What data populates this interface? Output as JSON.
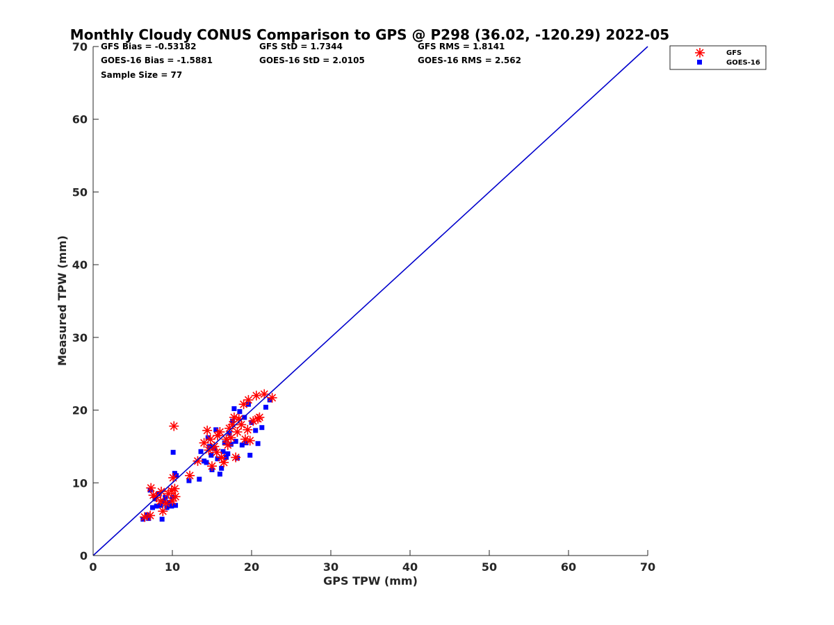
{
  "chart_data": {
    "type": "scatter",
    "title": "Monthly Cloudy CONUS Comparison to GPS @ P298 (36.02, -120.29) 2022-05",
    "xlabel": "GPS TPW (mm)",
    "ylabel": "Measured TPW (mm)",
    "xlim": [
      0,
      70
    ],
    "ylim": [
      0,
      70
    ],
    "xticks": [
      "0",
      "10",
      "20",
      "30",
      "40",
      "50",
      "60",
      "70"
    ],
    "yticks": [
      "0",
      "10",
      "20",
      "30",
      "40",
      "50",
      "60",
      "70"
    ],
    "grid": false,
    "legend_position": "top-right-outside",
    "stats": {
      "gfs_bias": "GFS Bias = -0.53182",
      "gfs_std": "GFS StD = 1.7344",
      "gfs_rms": "GFS RMS = 1.8141",
      "goes_bias": "GOES-16 Bias = -1.5881",
      "goes_std": "GOES-16 StD = 2.0105",
      "goes_rms": "GOES-16 RMS = 2.562",
      "sample_size": "Sample Size = 77"
    },
    "reference_line": {
      "x": [
        0,
        70
      ],
      "y": [
        0,
        70
      ],
      "color": "#0000cc"
    },
    "series": [
      {
        "name": "GFS",
        "marker": "asterisk",
        "color": "#ff0000",
        "points": [
          [
            6.5,
            5.3
          ],
          [
            7.2,
            5.5
          ],
          [
            7.3,
            9.3
          ],
          [
            7.6,
            8.3
          ],
          [
            8.0,
            8.0
          ],
          [
            8.5,
            7.5
          ],
          [
            8.6,
            8.8
          ],
          [
            8.8,
            6.1
          ],
          [
            9.2,
            7.2
          ],
          [
            9.5,
            8.5
          ],
          [
            9.9,
            8.9
          ],
          [
            10.0,
            7.5
          ],
          [
            10.1,
            10.7
          ],
          [
            10.2,
            17.8
          ],
          [
            10.3,
            9.2
          ],
          [
            10.4,
            8.1
          ],
          [
            12.2,
            11.0
          ],
          [
            13.2,
            13.0
          ],
          [
            14.0,
            15.5
          ],
          [
            14.4,
            17.2
          ],
          [
            14.6,
            14.5
          ],
          [
            14.8,
            16.0
          ],
          [
            15.0,
            12.3
          ],
          [
            15.3,
            15.0
          ],
          [
            15.6,
            14.2
          ],
          [
            15.7,
            16.5
          ],
          [
            16.0,
            17.0
          ],
          [
            16.2,
            13.5
          ],
          [
            16.5,
            12.8
          ],
          [
            16.8,
            16.0
          ],
          [
            17.0,
            15.2
          ],
          [
            17.2,
            17.5
          ],
          [
            17.4,
            16.2
          ],
          [
            17.6,
            18.0
          ],
          [
            17.8,
            19.0
          ],
          [
            18.0,
            13.5
          ],
          [
            18.2,
            17.0
          ],
          [
            18.4,
            18.8
          ],
          [
            18.7,
            18.0
          ],
          [
            19.0,
            20.8
          ],
          [
            19.2,
            16.0
          ],
          [
            19.5,
            17.3
          ],
          [
            19.6,
            21.4
          ],
          [
            19.8,
            15.8
          ],
          [
            20.2,
            18.5
          ],
          [
            20.6,
            22.0
          ],
          [
            20.8,
            18.8
          ],
          [
            21.0,
            19.0
          ],
          [
            21.6,
            22.2
          ],
          [
            22.6,
            21.7
          ]
        ]
      },
      {
        "name": "GOES-16",
        "marker": "square",
        "color": "#0000ff",
        "points": [
          [
            6.3,
            5.0
          ],
          [
            6.8,
            5.6
          ],
          [
            7.0,
            5.1
          ],
          [
            7.2,
            9.0
          ],
          [
            7.5,
            6.6
          ],
          [
            7.8,
            7.8
          ],
          [
            8.0,
            6.8
          ],
          [
            8.2,
            8.5
          ],
          [
            8.5,
            6.9
          ],
          [
            8.7,
            5.0
          ],
          [
            8.9,
            7.5
          ],
          [
            9.1,
            8.0
          ],
          [
            9.3,
            6.6
          ],
          [
            9.6,
            7.3
          ],
          [
            9.9,
            6.8
          ],
          [
            10.0,
            8.0
          ],
          [
            10.1,
            14.2
          ],
          [
            10.3,
            11.3
          ],
          [
            10.4,
            6.9
          ],
          [
            10.5,
            11.0
          ],
          [
            12.1,
            10.3
          ],
          [
            13.4,
            10.5
          ],
          [
            13.6,
            14.3
          ],
          [
            14.0,
            13.0
          ],
          [
            14.3,
            12.8
          ],
          [
            14.5,
            16.2
          ],
          [
            14.7,
            15.0
          ],
          [
            14.9,
            13.8
          ],
          [
            15.0,
            11.8
          ],
          [
            15.3,
            14.7
          ],
          [
            15.5,
            17.3
          ],
          [
            15.7,
            13.3
          ],
          [
            16.0,
            11.2
          ],
          [
            16.2,
            12.0
          ],
          [
            16.4,
            14.3
          ],
          [
            16.6,
            15.5
          ],
          [
            16.8,
            13.5
          ],
          [
            17.0,
            14.0
          ],
          [
            17.2,
            16.8
          ],
          [
            17.4,
            15.3
          ],
          [
            17.6,
            18.5
          ],
          [
            17.8,
            20.2
          ],
          [
            18.0,
            15.7
          ],
          [
            18.2,
            13.4
          ],
          [
            18.5,
            19.8
          ],
          [
            18.8,
            15.2
          ],
          [
            19.1,
            19.0
          ],
          [
            19.3,
            15.5
          ],
          [
            19.6,
            20.8
          ],
          [
            19.8,
            13.8
          ],
          [
            20.0,
            18.3
          ],
          [
            20.5,
            17.2
          ],
          [
            20.8,
            15.4
          ],
          [
            21.3,
            17.6
          ],
          [
            21.8,
            20.4
          ],
          [
            22.3,
            21.4
          ]
        ]
      }
    ]
  }
}
